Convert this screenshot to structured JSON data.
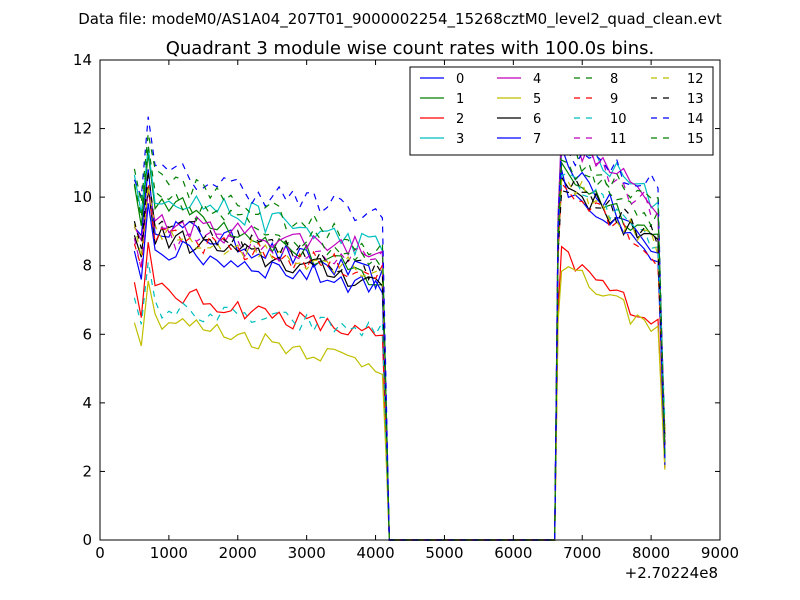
{
  "chart_data": {
    "type": "line",
    "supertitle": "Data file: modeM0/AS1A04_207T01_9000002254_15268cztM0_level2_quad_clean.evt",
    "title": "Quadrant 3 module wise count rates with 100.0s bins.",
    "xlabel": "",
    "ylabel": "",
    "xlim": [
      0,
      9000
    ],
    "ylim": [
      0,
      14
    ],
    "xticks": [
      0,
      1000,
      2000,
      3000,
      4000,
      5000,
      6000,
      7000,
      8000,
      9000
    ],
    "yticks": [
      0,
      2,
      4,
      6,
      8,
      10,
      12,
      14
    ],
    "x_offset_label": "+2.70224e8",
    "legend_position": "upper right",
    "series": [
      {
        "name": "0",
        "color": "#0000ff",
        "dash": "solid",
        "seg1_base": 9.4,
        "seg1_end": 7.6,
        "seg2_base": 11.2,
        "seg2_end": 8.3,
        "noise": 0.35
      },
      {
        "name": "1",
        "color": "#008000",
        "dash": "solid",
        "seg1_base": 10.2,
        "seg1_end": 7.5,
        "seg2_base": 10.8,
        "seg2_end": 8.8,
        "noise": 0.35
      },
      {
        "name": "2",
        "color": "#ff0000",
        "dash": "solid",
        "seg1_base": 7.4,
        "seg1_end": 5.9,
        "seg2_base": 8.3,
        "seg2_end": 6.3,
        "noise": 0.3
      },
      {
        "name": "3",
        "color": "#00bfbf",
        "dash": "solid",
        "seg1_base": 10.3,
        "seg1_end": 8.5,
        "seg2_base": 11.8,
        "seg2_end": 9.8,
        "noise": 0.4
      },
      {
        "name": "4",
        "color": "#bf00bf",
        "dash": "solid",
        "seg1_base": 9.3,
        "seg1_end": 8.5,
        "seg2_base": 11.8,
        "seg2_end": 9.8,
        "noise": 0.35
      },
      {
        "name": "5",
        "color": "#bfbf00",
        "dash": "solid",
        "seg1_base": 6.6,
        "seg1_end": 5.1,
        "seg2_base": 8.0,
        "seg2_end": 6.0,
        "noise": 0.3
      },
      {
        "name": "6",
        "color": "#000000",
        "dash": "solid",
        "seg1_base": 9.0,
        "seg1_end": 7.5,
        "seg2_base": 10.5,
        "seg2_end": 8.5,
        "noise": 0.35
      },
      {
        "name": "7",
        "color": "#0000ff",
        "dash": "solid",
        "seg1_base": 8.6,
        "seg1_end": 7.4,
        "seg2_base": 10.5,
        "seg2_end": 8.0,
        "noise": 0.35
      },
      {
        "name": "8",
        "color": "#008000",
        "dash": "dashed",
        "seg1_base": 10.1,
        "seg1_end": 8.2,
        "seg2_base": 11.5,
        "seg2_end": 9.3,
        "noise": 0.35
      },
      {
        "name": "9",
        "color": "#ff0000",
        "dash": "dashed",
        "seg1_base": 8.9,
        "seg1_end": 7.8,
        "seg2_base": 10.3,
        "seg2_end": 8.3,
        "noise": 0.35
      },
      {
        "name": "10",
        "color": "#00bfbf",
        "dash": "dashed",
        "seg1_base": 6.8,
        "seg1_end": 6.1,
        "seg2_base": 10.8,
        "seg2_end": 8.5,
        "noise": 0.3
      },
      {
        "name": "11",
        "color": "#bf00bf",
        "dash": "dashed",
        "seg1_base": 8.9,
        "seg1_end": 8.1,
        "seg2_base": 11.7,
        "seg2_end": 9.5,
        "noise": 0.35
      },
      {
        "name": "12",
        "color": "#bfbf00",
        "dash": "dashed",
        "seg1_base": 9.0,
        "seg1_end": 7.9,
        "seg2_base": 10.6,
        "seg2_end": 8.5,
        "noise": 0.35
      },
      {
        "name": "13",
        "color": "#000000",
        "dash": "dashed",
        "seg1_base": 9.5,
        "seg1_end": 7.8,
        "seg2_base": 10.5,
        "seg2_end": 8.8,
        "noise": 0.35
      },
      {
        "name": "14",
        "color": "#0000ff",
        "dash": "dashed",
        "seg1_base": 10.9,
        "seg1_end": 9.4,
        "seg2_base": 11.5,
        "seg2_end": 10.2,
        "noise": 0.4
      },
      {
        "name": "15",
        "color": "#008000",
        "dash": "dashed",
        "seg1_base": 10.8,
        "seg1_end": 8.5,
        "seg2_base": 11.0,
        "seg2_end": 10.0,
        "noise": 0.35
      }
    ],
    "segments": [
      {
        "x_start": 500,
        "x_end": 4100,
        "step": 100
      },
      {
        "x_start": 6700,
        "x_end": 8100,
        "step": 100
      }
    ],
    "gap": {
      "x_start": 4200,
      "x_end": 6600,
      "value": 0
    }
  }
}
